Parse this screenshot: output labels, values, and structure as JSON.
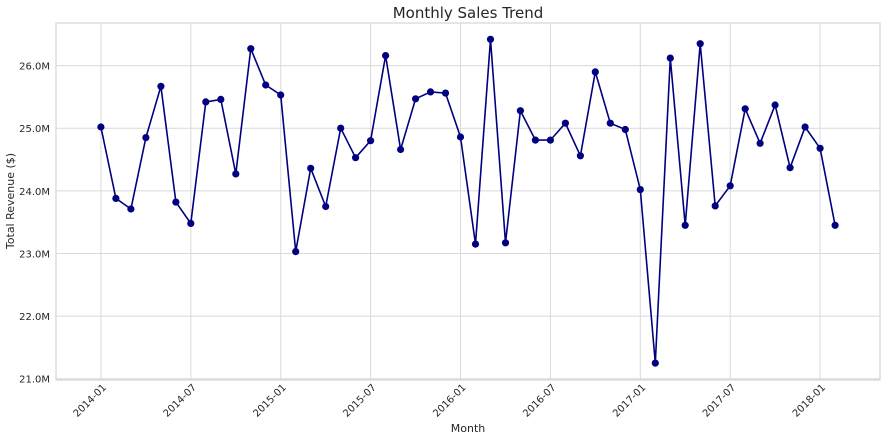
{
  "chart_data": {
    "type": "line",
    "title": "Monthly Sales Trend",
    "xlabel": "Month",
    "ylabel": "Total Revenue ($)",
    "x_tick_labels": [
      "2014-01",
      "2014-07",
      "2015-01",
      "2015-07",
      "2016-01",
      "2016-07",
      "2017-01",
      "2017-07",
      "2018-01"
    ],
    "y_ticks": [
      21.0,
      22.0,
      23.0,
      24.0,
      25.0,
      26.0
    ],
    "y_tick_labels": [
      "21.0M",
      "22.0M",
      "23.0M",
      "24.0M",
      "25.0M",
      "26.0M"
    ],
    "ylim": [
      20.98,
      26.68
    ],
    "xlim": [
      "2013-10",
      "2018-05"
    ],
    "grid": true,
    "line_color": "#000080",
    "marker_color": "#000080",
    "series": [
      {
        "x": [
          "2014-01",
          "2014-02",
          "2014-03",
          "2014-04",
          "2014-05",
          "2014-06",
          "2014-07",
          "2014-08",
          "2014-09",
          "2014-10",
          "2014-11",
          "2014-12",
          "2015-01",
          "2015-02",
          "2015-03",
          "2015-04",
          "2015-05",
          "2015-06",
          "2015-07",
          "2015-08",
          "2015-09",
          "2015-10",
          "2015-11",
          "2015-12",
          "2016-01",
          "2016-02",
          "2016-03",
          "2016-04",
          "2016-05",
          "2016-06",
          "2016-07",
          "2016-08",
          "2016-09",
          "2016-10",
          "2016-11",
          "2016-12",
          "2017-01",
          "2017-02",
          "2017-03",
          "2017-04",
          "2017-05",
          "2017-06",
          "2017-07",
          "2017-08",
          "2017-09",
          "2017-10",
          "2017-11",
          "2017-12",
          "2018-01",
          "2018-02",
          "2018-03"
        ],
        "y": [
          25.02,
          23.88,
          23.71,
          24.85,
          25.67,
          23.82,
          23.48,
          25.42,
          25.46,
          24.27,
          26.27,
          25.69,
          25.53,
          23.03,
          24.36,
          23.75,
          25.0,
          24.53,
          24.8,
          26.16,
          24.66,
          25.47,
          25.58,
          25.56,
          24.86,
          23.15,
          26.42,
          23.17,
          25.28,
          24.81,
          24.81,
          25.08,
          24.56,
          25.9,
          25.08,
          24.98,
          24.02,
          21.25,
          26.12,
          23.45,
          26.35,
          23.76,
          24.08,
          25.31,
          24.76,
          25.37,
          24.37,
          25.02,
          24.68,
          23.45,
          null
        ]
      }
    ]
  }
}
